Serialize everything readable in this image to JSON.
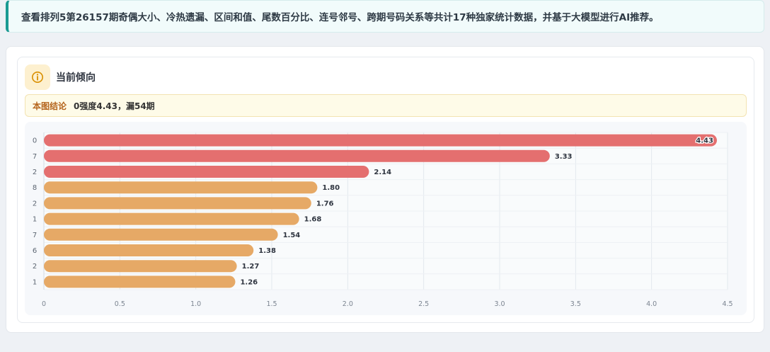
{
  "notice": {
    "text": "查看排列5第26157期奇偶大小、冷热遗漏、区间和值、尾数百分比、连号邻号、跨期号码关系等共计17种独家统计数据，并基于大模型进行AI推荐。"
  },
  "card": {
    "title": "当前倾向",
    "icon": "info-circle-icon",
    "conclusion_label": "本图结论",
    "conclusion_value": "0强度4.43，漏54期"
  },
  "colors": {
    "hot": "#e46f6f",
    "warm": "#e6a966",
    "accent": "#1b9a92"
  },
  "chart_data": {
    "type": "bar",
    "orientation": "horizontal",
    "categories": [
      "0",
      "7",
      "2",
      "8",
      "2",
      "1",
      "7",
      "6",
      "2",
      "1"
    ],
    "values": [
      4.43,
      3.33,
      2.14,
      1.8,
      1.76,
      1.68,
      1.54,
      1.38,
      1.27,
      1.26
    ],
    "value_labels": [
      "4.43",
      "3.33",
      "2.14",
      "1.80",
      "1.76",
      "1.68",
      "1.54",
      "1.38",
      "1.27",
      "1.26"
    ],
    "bar_colors": [
      "#e46f6f",
      "#e46f6f",
      "#e46f6f",
      "#e6a966",
      "#e6a966",
      "#e6a966",
      "#e6a966",
      "#e6a966",
      "#e6a966",
      "#e6a966"
    ],
    "xlim": [
      0,
      4.5
    ],
    "xticks": [
      "0",
      "0.5",
      "1.0",
      "1.5",
      "2.0",
      "2.5",
      "3.0",
      "3.5",
      "4.0",
      "4.5"
    ],
    "grid": true,
    "title": "",
    "xlabel": "",
    "ylabel": ""
  }
}
